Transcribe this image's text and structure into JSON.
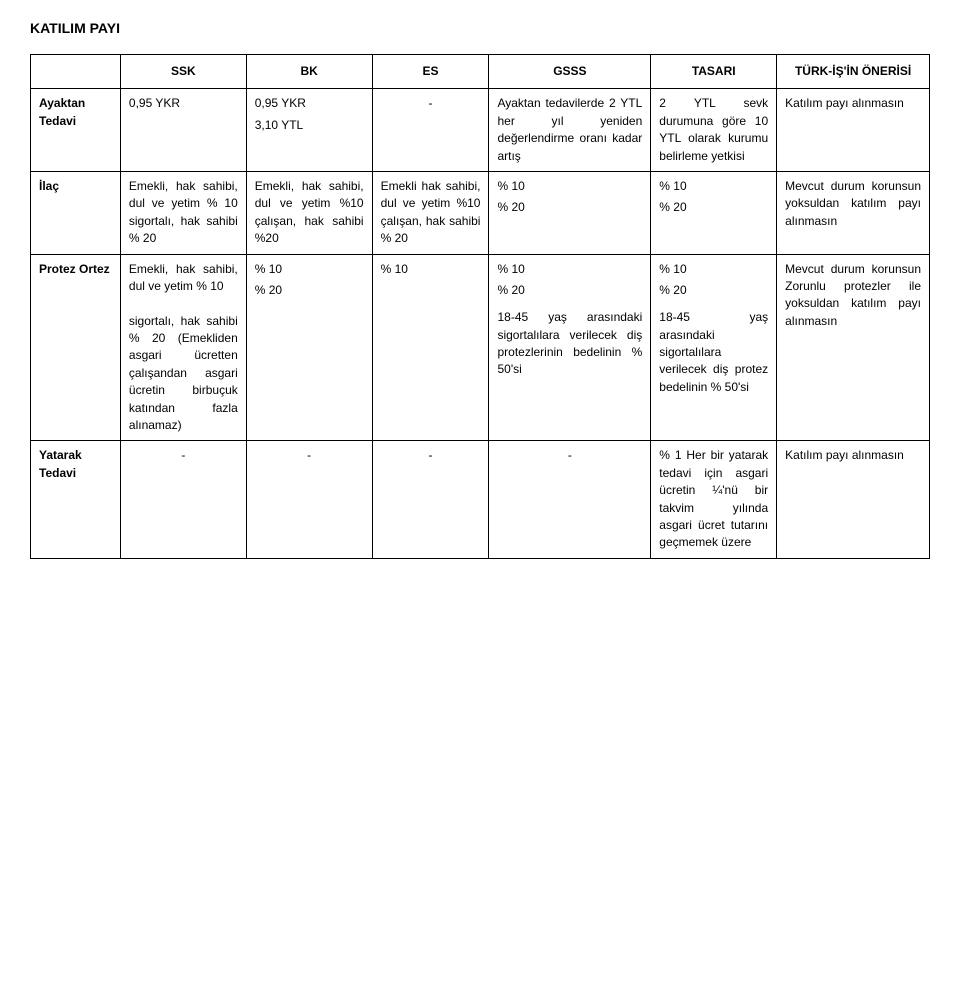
{
  "title": "KATILIM PAYI",
  "columns": [
    "",
    "SSK",
    "BK",
    "ES",
    "GSSS",
    "TASARI",
    "TÜRK-İŞ'İN ÖNERİSİ"
  ],
  "rows": [
    {
      "label": "Ayaktan Tedavi",
      "ssk": "0,95 YKR",
      "bk_1": "0,95 YKR",
      "bk_2": "3,10 YTL",
      "es": "-",
      "gsss": "Ayaktan tedavilerde 2 YTL her yıl yeniden değerlendirme oranı kadar artış",
      "tasari": "2 YTL sevk durumuna göre 10 YTL olarak kurumu belirleme yetkisi",
      "oneri": "Katılım payı alınmasın"
    },
    {
      "label": "İlaç",
      "ssk": "Emekli, hak sahibi, dul ve yetim % 10 sigortalı, hak sahibi % 20",
      "bk": "Emekli, hak sahibi, dul ve yetim %10 çalışan, hak sahibi %20",
      "es": "Emekli hak sahibi, dul ve yetim %10 çalışan, hak sahibi % 20",
      "gsss_1": "% 10",
      "gsss_2": "% 20",
      "tasari_1": "% 10",
      "tasari_2": "% 20",
      "oneri": "Mevcut durum korunsun yoksuldan katılım payı alınmasın"
    },
    {
      "label": "Protez Ortez",
      "ssk": "Emekli, hak sahibi, dul ve yetim % 10\n\nsigortalı, hak sahibi % 20 (Emekliden asgari ücretten çalışandan asgari ücretin birbuçuk katından fazla alınamaz)",
      "bk_1": "% 10",
      "bk_2": "% 20",
      "es": "% 10",
      "gsss_1": "% 10",
      "gsss_2": "% 20",
      "gsss_3": "18-45 yaş arasındaki sigortalılara verilecek diş protezlerinin bedelinin % 50'si",
      "tasari_1": "% 10",
      "tasari_2": "% 20",
      "tasari_3": "18-45 yaş arasındaki sigortalılara verilecek diş protez bedelinin % 50'si",
      "oneri": "Mevcut durum korunsun Zorunlu protezler ile yoksuldan katılım payı alınmasın"
    },
    {
      "label": "Yatarak Tedavi",
      "ssk": "-",
      "bk": "-",
      "es": "-",
      "gsss": "-",
      "tasari": "% 1 Her bir yatarak tedavi için asgari ücretin ¼'nü bir takvim yılında asgari ücret tutarını geçmemek üzere",
      "oneri": "Katılım payı alınmasın"
    }
  ],
  "style": {
    "font_family": "Verdana",
    "title_fontsize": 14,
    "body_fontsize": 12,
    "border_color": "#000000",
    "background_color": "#ffffff",
    "text_color": "#000000",
    "col_widths_pct": [
      10,
      14,
      14,
      13,
      18,
      14,
      17
    ],
    "line_height": 1.45
  }
}
